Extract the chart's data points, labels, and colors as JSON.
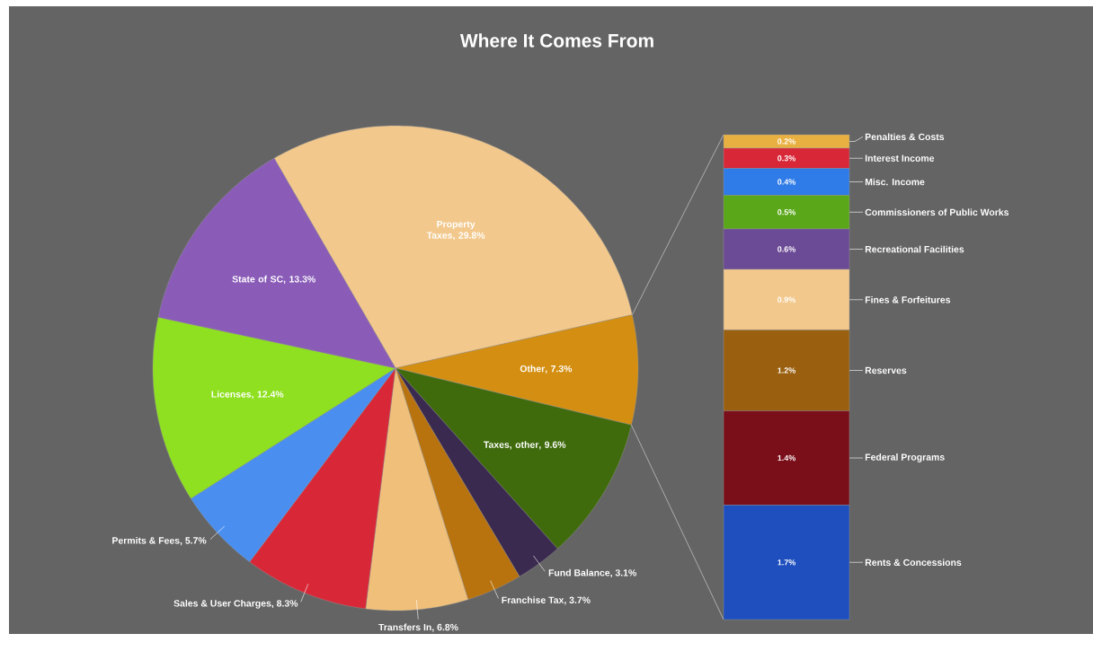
{
  "chart_data": [
    {
      "type": "pie",
      "title": "Where It Comes From",
      "categories": [
        "Property Taxes",
        "Other",
        "Taxes, other",
        "Fund Balance",
        "Franchise Tax",
        "Transfers In",
        "Sales & User Charges",
        "Permits & Fees",
        "Licenses",
        "State of SC"
      ],
      "values": [
        29.8,
        7.3,
        9.6,
        3.1,
        3.7,
        6.8,
        8.3,
        5.7,
        12.4,
        13.3
      ],
      "value_labels": [
        ", 29.8%",
        ", 7.3%",
        ", 9.6%",
        ", 3.1%",
        ", 3.7%",
        ", 6.8%",
        ", 8.3%",
        ", 5.7%",
        ", 12.4%",
        ", 13.3%"
      ],
      "colors": [
        "#f2c88c",
        "#d48f12",
        "#3f6b0c",
        "#3a2a4f",
        "#b8730f",
        "#f0c07a",
        "#d82838",
        "#4a8ff0",
        "#8ee020",
        "#8a5cb8"
      ]
    },
    {
      "type": "bar",
      "stacked": true,
      "categories": [
        null
      ],
      "series": [
        {
          "name": "Rents & Concessions",
          "color": "#1f4fbf",
          "values": [
            1.7
          ],
          "value_labels": [
            "1.7%"
          ]
        },
        {
          "name": "Federal Programs",
          "color": "#7a0f1a",
          "values": [
            1.4
          ],
          "value_labels": [
            "1.4%"
          ]
        },
        {
          "name": "Reserves",
          "color": "#9a6010",
          "values": [
            1.2
          ],
          "value_labels": [
            "1.2%"
          ]
        },
        {
          "name": "Fines & Forfeitures",
          "color": "#f2c88c",
          "values": [
            0.9
          ],
          "value_labels": [
            "0.9%"
          ]
        },
        {
          "name": "Recreational Facilities",
          "color": "#6b4a96",
          "values": [
            0.6
          ],
          "value_labels": [
            "0.6%"
          ]
        },
        {
          "name": "Commissioners of Public Works",
          "color": "#5aa81a",
          "values": [
            0.5
          ],
          "value_labels": [
            "0.5%"
          ]
        },
        {
          "name": "Misc. Income",
          "color": "#2f7ce8",
          "values": [
            0.4
          ],
          "value_labels": [
            "0.4%"
          ]
        },
        {
          "name": "Interest Income",
          "color": "#d82838",
          "values": [
            0.3
          ],
          "value_labels": [
            "0.3%"
          ]
        },
        {
          "name": "Penalties & Costs",
          "color": "#e8b040",
          "values": [
            0.2
          ],
          "value_labels": [
            "0.2%"
          ]
        }
      ]
    }
  ]
}
